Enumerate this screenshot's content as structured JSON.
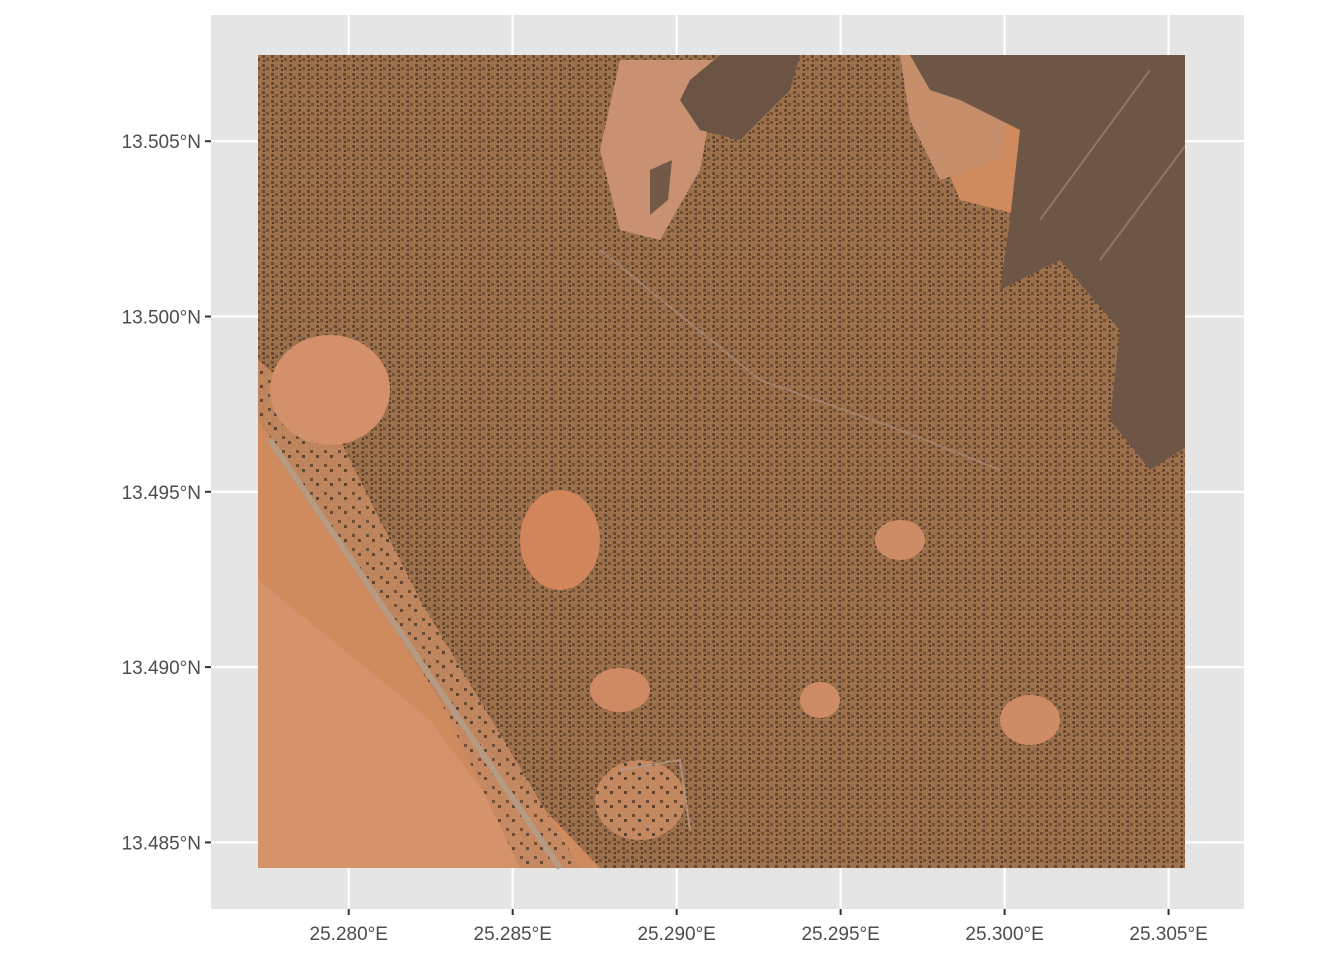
{
  "map": {
    "type": "raster-basemap",
    "imagery": "satellite",
    "theme": "ggplot2-gray",
    "panel_background": "#e5e5e5",
    "grid_color": "#ffffff",
    "x_axis": {
      "range": [
        25.2758,
        25.3073
      ],
      "ticks": [
        {
          "value": 25.28,
          "label": "25.280°E"
        },
        {
          "value": 25.285,
          "label": "25.285°E"
        },
        {
          "value": 25.29,
          "label": "25.290°E"
        },
        {
          "value": 25.295,
          "label": "25.295°E"
        },
        {
          "value": 25.3,
          "label": "25.300°E"
        },
        {
          "value": 25.305,
          "label": "25.305°E"
        }
      ]
    },
    "y_axis": {
      "range": [
        13.4831,
        13.5086
      ],
      "ticks": [
        {
          "value": 13.485,
          "label": "13.485°N"
        },
        {
          "value": 13.49,
          "label": "13.490°N"
        },
        {
          "value": 13.495,
          "label": "13.495°N"
        },
        {
          "value": 13.5,
          "label": "13.500°N"
        },
        {
          "value": 13.505,
          "label": "13.505°N"
        }
      ]
    },
    "raster_extent": {
      "lon": [
        25.2771,
        25.3055
      ],
      "lat": [
        13.4842,
        13.5083
      ]
    },
    "colors": {
      "sand": "#cf8a5e",
      "sand_light": "#d6926a",
      "settlement": "#8a6544",
      "dark_field": "#6b5443",
      "road": "#b59a84"
    }
  }
}
